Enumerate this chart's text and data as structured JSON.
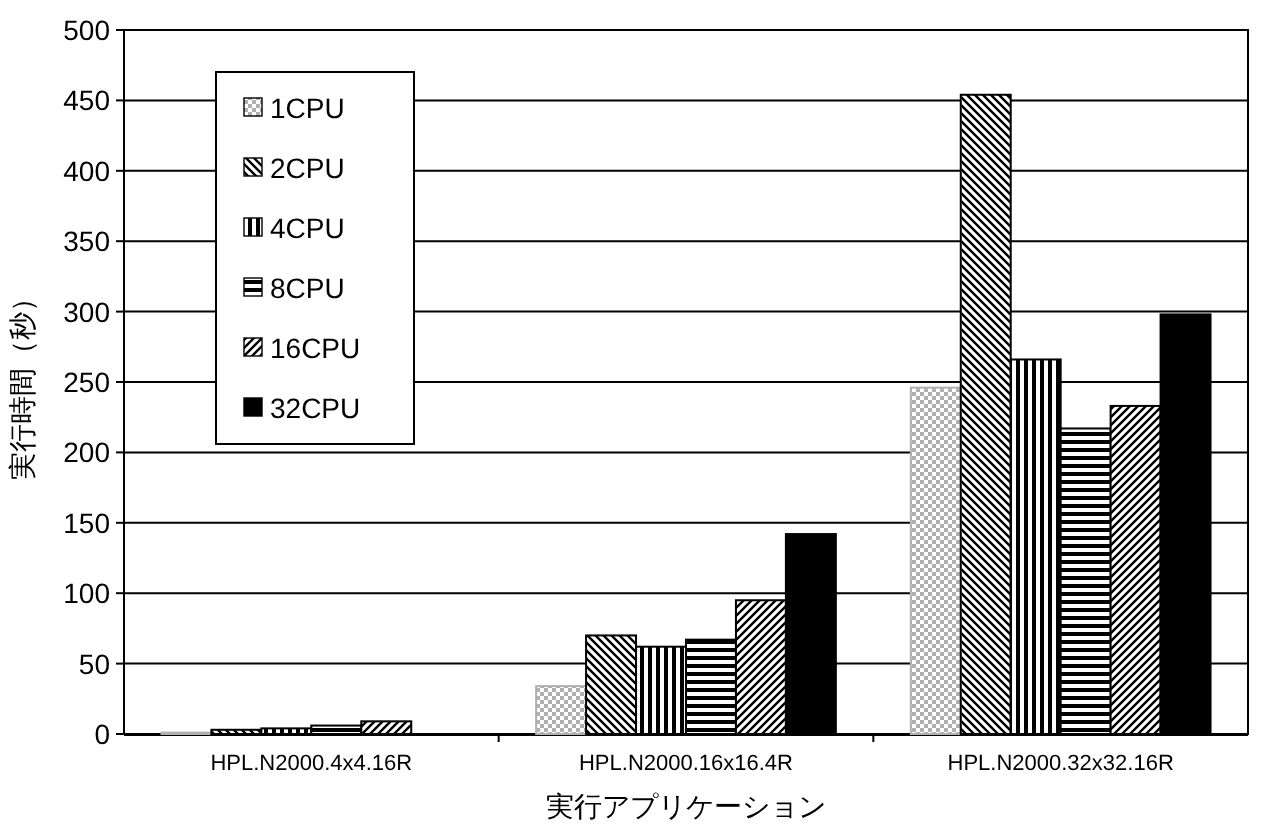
{
  "chart_data": {
    "type": "bar",
    "xlabel": "実行アプリケーション",
    "ylabel": "実行時間（秒）",
    "categories": [
      "HPL.N2000.4x4.16R",
      "HPL.N2000.16x16.4R",
      "HPL.N2000.32x32.16R"
    ],
    "series": [
      {
        "name": "1CPU",
        "color": "#b0b0b0",
        "values": [
          1,
          34,
          246
        ]
      },
      {
        "name": "2CPU",
        "color": "#000000",
        "values": [
          3,
          70,
          454
        ]
      },
      {
        "name": "4CPU",
        "color": "#000000",
        "values": [
          4,
          62,
          266
        ]
      },
      {
        "name": "8CPU",
        "color": "#000000",
        "values": [
          6,
          67,
          217
        ]
      },
      {
        "name": "16CPU",
        "color": "#000000",
        "values": [
          9,
          95,
          233
        ]
      },
      {
        "name": "32CPU",
        "color": "#000000",
        "values": [
          0,
          142,
          298
        ]
      }
    ],
    "ylim": [
      0,
      500
    ],
    "yticks": [
      0,
      50,
      100,
      150,
      200,
      250,
      300,
      350,
      400,
      450,
      500
    ],
    "grid": "y",
    "legend": "top left"
  }
}
